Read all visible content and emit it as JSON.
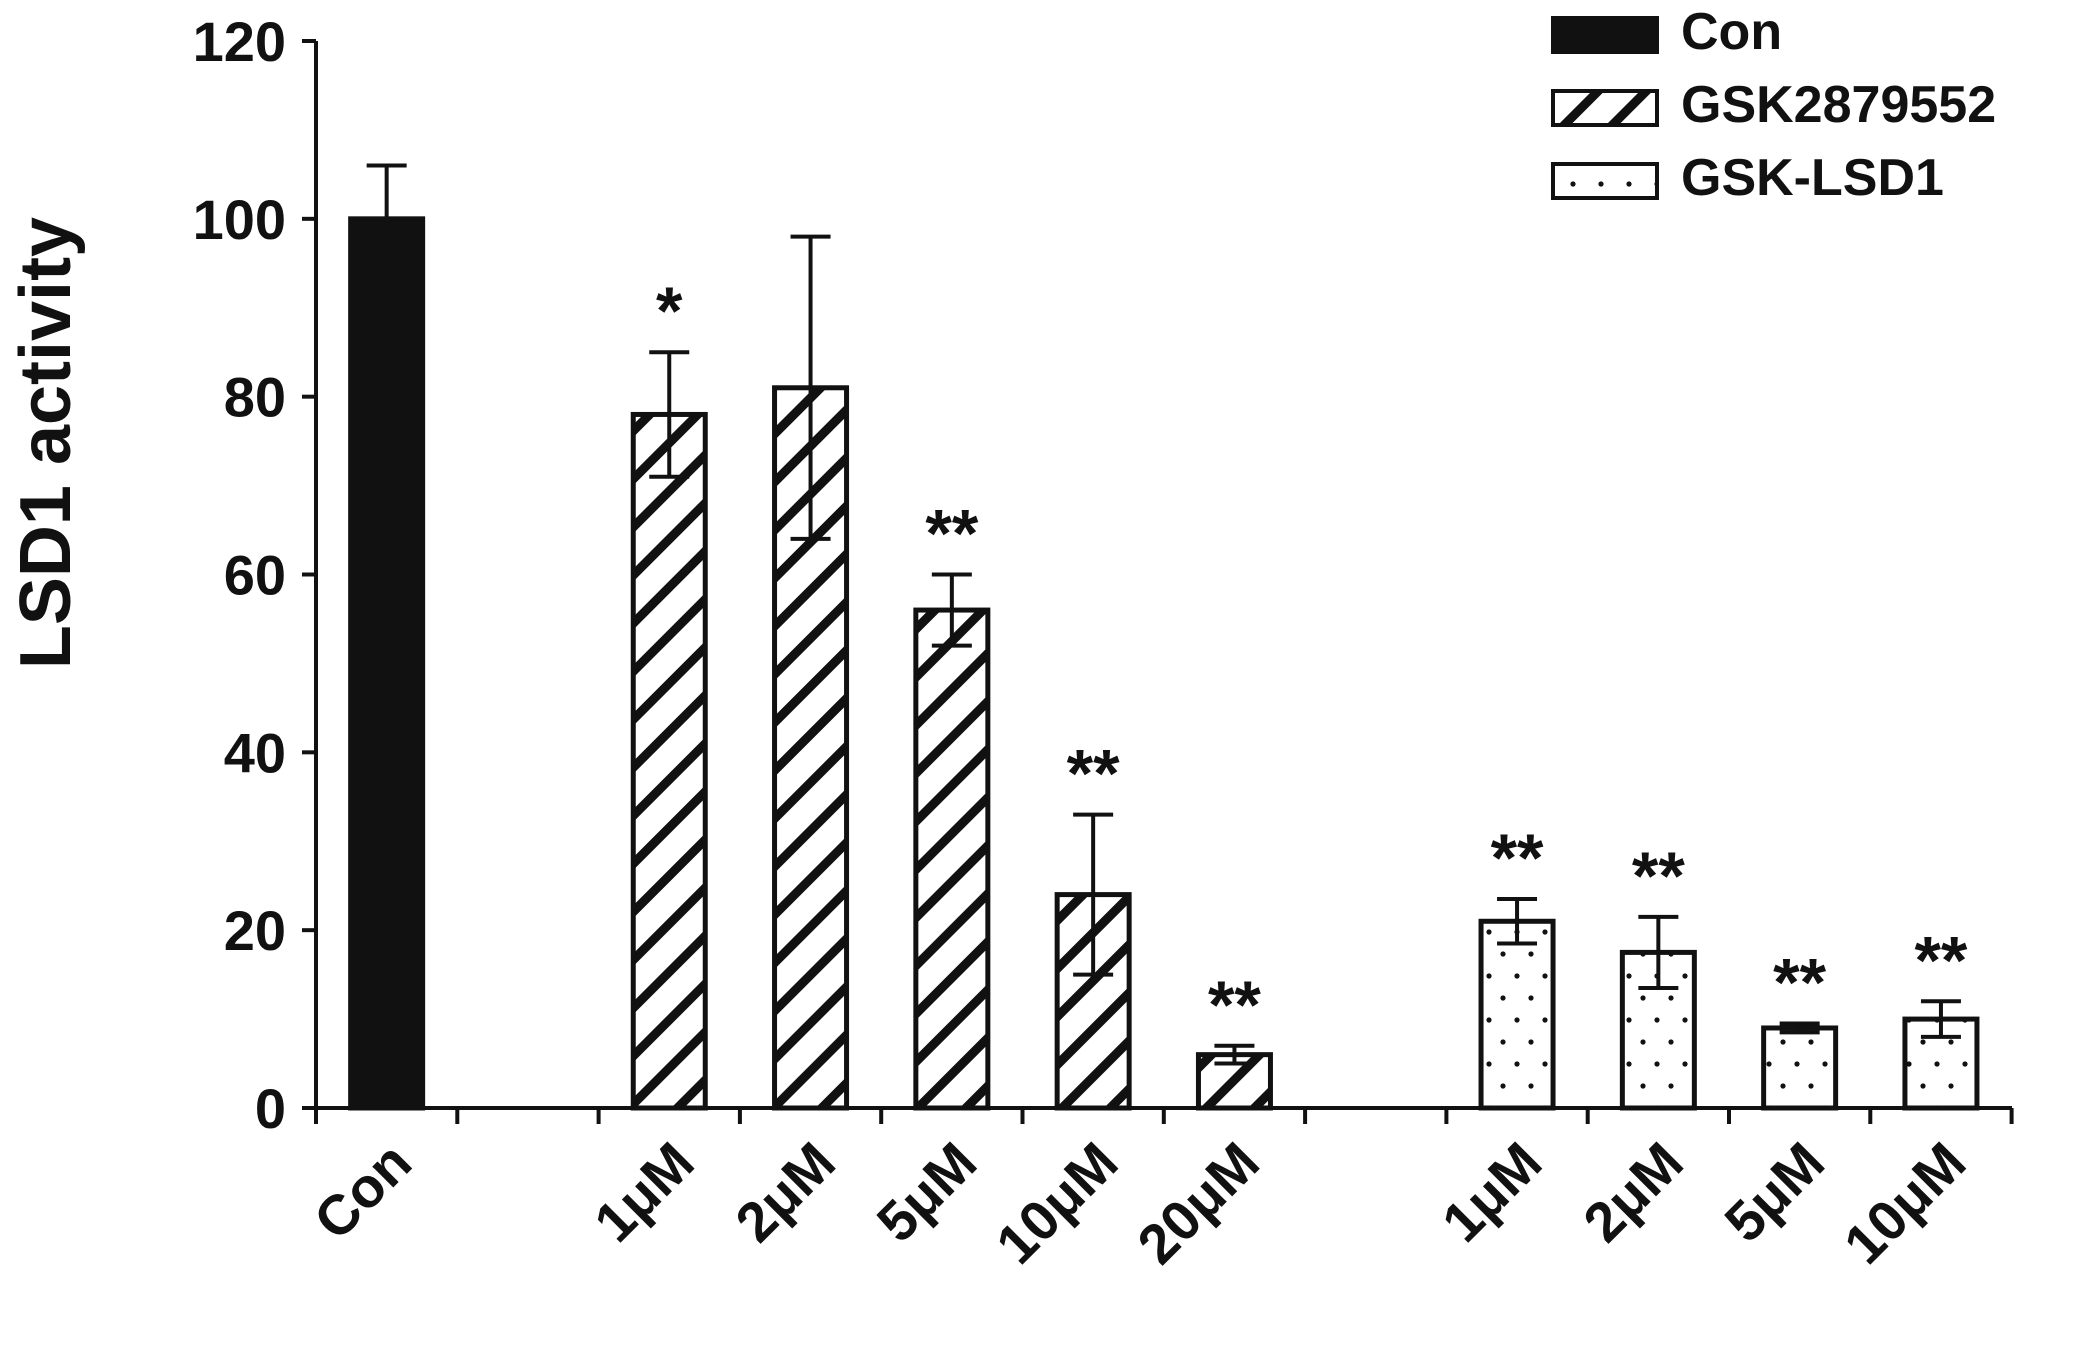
{
  "chart_data": {
    "type": "bar",
    "title": "",
    "xlabel": "",
    "ylabel": "LSD1 activity",
    "ylim": [
      0,
      120
    ],
    "yticks": [
      0,
      20,
      40,
      60,
      80,
      100,
      120
    ],
    "grid": false,
    "legend_position": "top-right",
    "legend": [
      {
        "name": "Con",
        "pattern": "solid"
      },
      {
        "name": "GSK2879552",
        "pattern": "diagonal-hatch"
      },
      {
        "name": "GSK-LSD1",
        "pattern": "dots"
      }
    ],
    "categories": [
      "Con",
      "1μM",
      "2μM",
      "5μM",
      "10μM",
      "20μM",
      "1μM",
      "2μM",
      "5μM",
      "10μM"
    ],
    "bars": [
      {
        "label": "Con",
        "series": "Con",
        "value": 100,
        "error": 6,
        "significance": ""
      },
      {
        "label": "1μM",
        "series": "GSK2879552",
        "value": 78,
        "error": 7,
        "significance": "*"
      },
      {
        "label": "2μM",
        "series": "GSK2879552",
        "value": 81,
        "error": 17,
        "significance": ""
      },
      {
        "label": "5μM",
        "series": "GSK2879552",
        "value": 56,
        "error": 4,
        "significance": "**"
      },
      {
        "label": "10μM",
        "series": "GSK2879552",
        "value": 24,
        "error": 9,
        "significance": "**"
      },
      {
        "label": "20μM",
        "series": "GSK2879552",
        "value": 6,
        "error": 1,
        "significance": "**"
      },
      {
        "label": "1μM",
        "series": "GSK-LSD1",
        "value": 21,
        "error": 2.5,
        "significance": "**"
      },
      {
        "label": "2μM",
        "series": "GSK-LSD1",
        "value": 17.5,
        "error": 4,
        "significance": "**"
      },
      {
        "label": "5μM",
        "series": "GSK-LSD1",
        "value": 9,
        "error": 0.5,
        "significance": "**"
      },
      {
        "label": "10μM",
        "series": "GSK-LSD1",
        "value": 10,
        "error": 2,
        "significance": "**"
      }
    ]
  }
}
